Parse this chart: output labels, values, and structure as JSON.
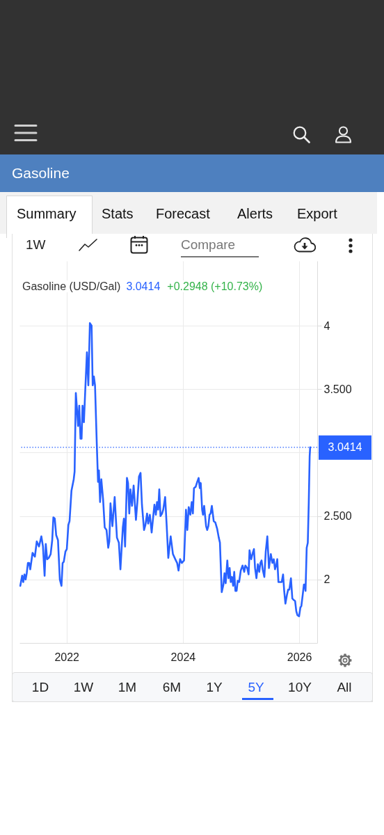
{
  "chart_data": {
    "type": "line",
    "title": "Gasoline",
    "subtitle": "Gasoline (USD/Gal)",
    "annotations": [
      "3.0414",
      "+0.2948 (+10.73%)",
      "Summary",
      "Stats",
      "Forecast",
      "Alerts",
      "Export",
      "1W",
      "Compare",
      "1D",
      "1W",
      "1M",
      "6M",
      "1Y",
      "5Y",
      "10Y",
      "All"
    ],
    "x": [
      2021.204,
      2021.236,
      2021.255,
      2021.276,
      2021.296,
      2021.315,
      2021.335,
      2021.356,
      2021.375,
      2021.415,
      2021.455,
      2021.487,
      2021.526,
      2021.566,
      2021.594,
      2021.622,
      2021.642,
      2021.666,
      2021.693,
      2021.726,
      2021.753,
      2021.773,
      2021.797,
      2021.821,
      2021.852,
      2021.884,
      2021.912,
      2021.932,
      2021.952,
      2021.98,
      2022.004,
      2022.031,
      2022.051,
      2022.084,
      2022.123,
      2022.138,
      2022.159,
      2022.179,
      2022.198,
      2022.218,
      2022.239,
      2022.258,
      2022.274,
      2022.298,
      2022.322,
      2022.35,
      2022.374,
      2022.401,
      2022.43,
      2022.449,
      2022.469,
      2022.489,
      2022.52,
      2022.541,
      2022.556,
      2022.576,
      2022.597,
      2022.628,
      2022.656,
      2022.687,
      2022.716,
      2022.735,
      2022.755,
      2022.788,
      2022.827,
      2022.866,
      2022.899,
      2022.926,
      2022.967,
      2022.986,
      2023.006,
      2023.038,
      2023.057,
      2023.078,
      2023.098,
      2023.125,
      2023.153,
      2023.193,
      2023.217,
      2023.245,
      2023.272,
      2023.296,
      2023.332,
      2023.356,
      2023.384,
      2023.403,
      2023.432,
      2023.463,
      2023.495,
      2023.511,
      2023.535,
      2023.555,
      2023.575,
      2023.594,
      2023.615,
      2023.642,
      2023.662,
      2023.695,
      2023.722,
      2023.749,
      2023.79,
      2023.829,
      2023.869,
      2023.901,
      2023.925,
      2023.952,
      2023.981,
      2024.02,
      2024.053,
      2024.076,
      2024.1,
      2024.128,
      2024.152,
      2024.172,
      2024.191,
      2024.22,
      2024.247,
      2024.271,
      2024.291,
      2024.307,
      2024.331,
      2024.346,
      2024.366,
      2024.399,
      2024.418,
      2024.438,
      2024.458,
      2024.477,
      2024.498,
      2024.53,
      2024.557,
      2024.589,
      2024.617,
      2024.637,
      2024.668,
      2024.697,
      2024.716,
      2024.736,
      2024.764,
      2024.784,
      2024.804,
      2024.823,
      2024.844,
      2024.864,
      2024.883,
      2024.903,
      2024.924,
      2024.943,
      2024.967,
      2024.995,
      2025.026,
      2025.055,
      2025.074,
      2025.106,
      2025.13,
      2025.146,
      2025.174,
      2025.202,
      2025.222,
      2025.241,
      2025.265,
      2025.289,
      2025.313,
      2025.333,
      2025.353,
      2025.372,
      2025.401,
      2025.425,
      2025.452,
      2025.48,
      2025.512,
      2025.539,
      2025.563,
      2025.584,
      2025.604,
      2025.623,
      2025.643,
      2025.671,
      2025.699,
      2025.723,
      2025.742,
      2025.763,
      2025.79,
      2025.81,
      2025.831,
      2025.858,
      2025.882,
      2025.902,
      2025.93,
      2025.95,
      2025.969,
      2025.998,
      2026.021,
      2026.037,
      2026.061,
      2026.081,
      2026.097,
      2026.109,
      2026.129,
      2026.148,
      2026.165,
      2026.18,
      2026.189
    ],
    "series": [
      {
        "color": "#2962ff",
        "values": [
          1.95,
          2.03,
          1.98,
          2.04,
          2.0,
          2.05,
          2.13,
          2.13,
          2.08,
          2.21,
          2.18,
          2.3,
          2.26,
          2.34,
          2.26,
          2.03,
          2.28,
          2.16,
          2.17,
          2.2,
          2.31,
          2.49,
          2.48,
          2.35,
          2.31,
          2.0,
          1.95,
          2.13,
          2.14,
          2.22,
          2.24,
          2.43,
          2.46,
          2.7,
          2.79,
          2.85,
          3.47,
          3.34,
          3.21,
          3.37,
          3.11,
          3.11,
          3.37,
          3.24,
          3.5,
          3.79,
          3.53,
          4.02,
          4.0,
          3.53,
          3.6,
          3.53,
          3.06,
          2.77,
          2.86,
          2.61,
          2.79,
          2.63,
          2.41,
          2.39,
          2.25,
          2.3,
          2.6,
          2.42,
          2.65,
          2.33,
          2.29,
          2.08,
          2.41,
          2.48,
          2.26,
          2.8,
          2.76,
          2.52,
          2.71,
          2.58,
          2.74,
          2.47,
          2.61,
          2.81,
          2.84,
          2.59,
          2.39,
          2.43,
          2.52,
          2.44,
          2.51,
          2.37,
          2.52,
          2.59,
          2.51,
          2.61,
          2.55,
          2.71,
          2.5,
          2.52,
          2.55,
          2.65,
          2.42,
          2.17,
          2.34,
          2.2,
          2.16,
          2.13,
          2.07,
          2.16,
          2.13,
          2.15,
          2.55,
          2.39,
          2.57,
          2.51,
          2.61,
          2.52,
          2.72,
          2.73,
          2.77,
          2.8,
          2.72,
          2.76,
          2.55,
          2.51,
          2.58,
          2.42,
          2.39,
          2.42,
          2.51,
          2.52,
          2.58,
          2.46,
          2.45,
          2.4,
          2.33,
          2.29,
          1.9,
          1.96,
          2.05,
          1.97,
          2.15,
          2.01,
          2.09,
          1.98,
          2.02,
          1.95,
          2.06,
          1.91,
          1.91,
          1.99,
          1.98,
          2.07,
          2.11,
          2.06,
          2.11,
          2.09,
          2.04,
          2.23,
          2.16,
          2.21,
          2.24,
          2.09,
          2.01,
          2.12,
          2.06,
          2.13,
          2.15,
          2.08,
          2.02,
          2.22,
          2.34,
          2.09,
          2.2,
          2.13,
          2.16,
          2.08,
          2.11,
          2.16,
          1.98,
          1.98,
          1.98,
          2.04,
          1.91,
          1.81,
          1.88,
          1.92,
          1.92,
          2.01,
          1.85,
          1.84,
          1.83,
          1.75,
          1.72,
          1.71,
          1.78,
          1.79,
          1.88,
          1.96,
          1.96,
          1.91,
          2.25,
          2.29,
          2.61,
          2.97,
          3.0414
        ]
      }
    ],
    "xlim": [
      2021.19,
      2026.31
    ],
    "xticks": [
      2022,
      2024,
      2026
    ],
    "ylim": [
      1.5,
      4.51
    ],
    "yticks": [
      2,
      {
        "value": 2.5,
        "label": "2.500"
      },
      {
        "value": 3,
        "label": null
      },
      {
        "value": 3.5,
        "label": "3.500"
      },
      4
    ],
    "ref_lines": [
      {
        "axis": "y",
        "value": 3.0414,
        "label": "3.0414",
        "color": "#2962ff",
        "line_style": "dotted"
      }
    ],
    "grid": true
  }
}
